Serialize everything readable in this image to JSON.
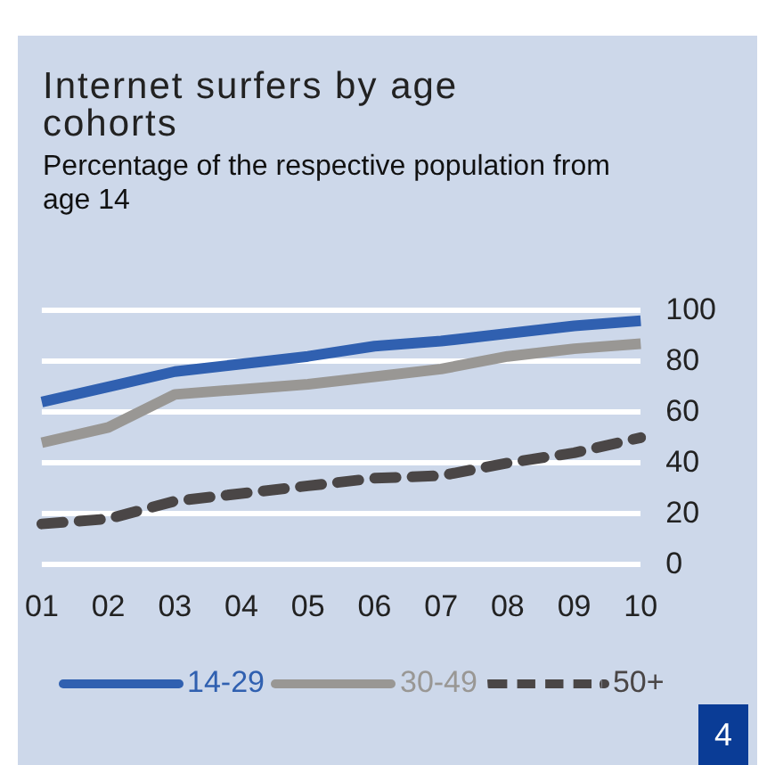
{
  "chart_data": {
    "type": "line",
    "title": "Internet surfers by age cohorts",
    "subtitle": "Percentage of the respective population from age 14",
    "categories": [
      "01",
      "02",
      "03",
      "04",
      "05",
      "06",
      "07",
      "08",
      "09",
      "10"
    ],
    "series": [
      {
        "name": "14-29",
        "color": "#3060b0",
        "line_style": "solid",
        "values": [
          64,
          70,
          76,
          79,
          82,
          86,
          88,
          91,
          94,
          96
        ]
      },
      {
        "name": "30-49",
        "color": "#999794",
        "line_style": "solid",
        "values": [
          48,
          54,
          67,
          69,
          71,
          74,
          77,
          82,
          85,
          87
        ]
      },
      {
        "name": "50+",
        "color": "#4a4646",
        "line_style": "dashed",
        "values": [
          16,
          18,
          25,
          28,
          31,
          34,
          35,
          40,
          44,
          50
        ]
      }
    ],
    "ylim": [
      0,
      100
    ],
    "yticks": [
      0,
      20,
      40,
      60,
      80,
      100
    ],
    "grid": "y",
    "legend": "bottom",
    "marker": "none",
    "annotations": [
      "4"
    ]
  }
}
